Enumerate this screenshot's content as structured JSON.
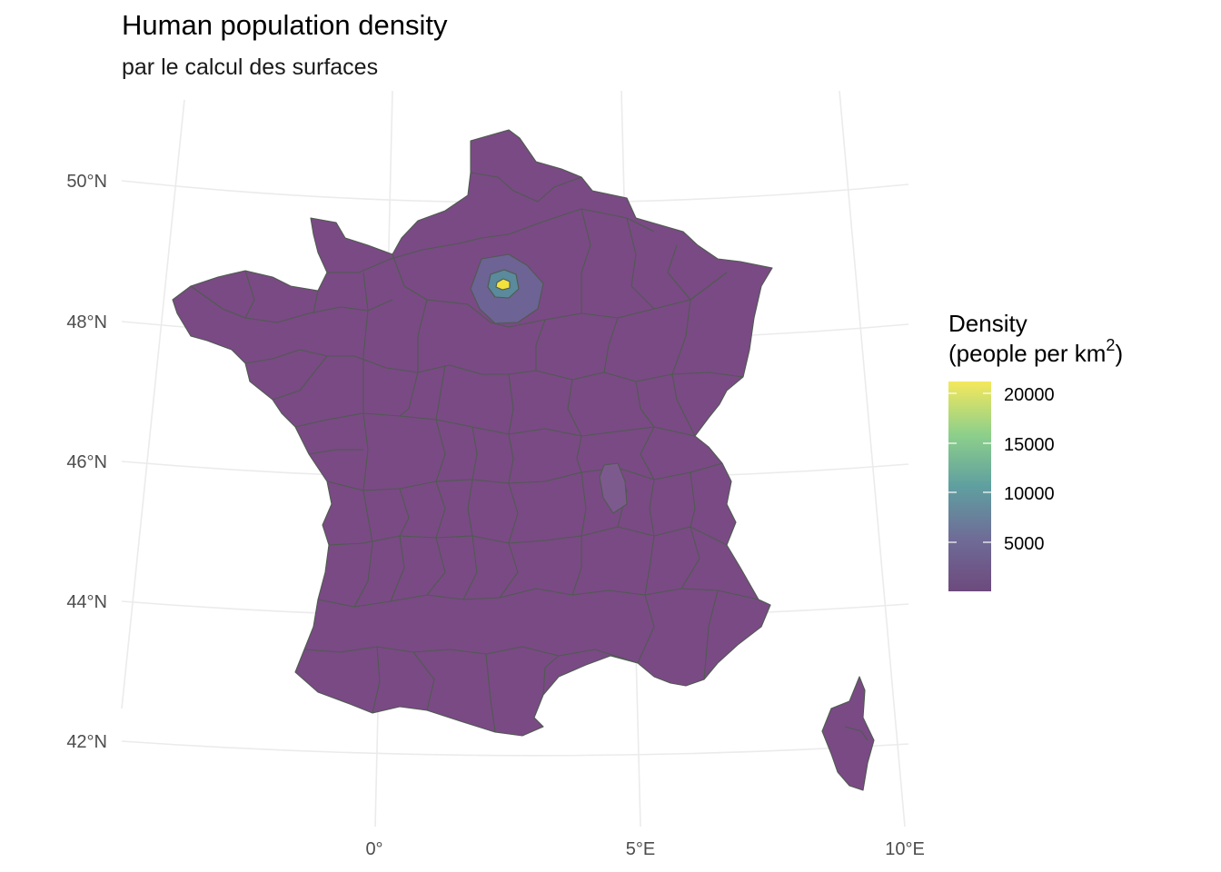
{
  "title": "Human population density",
  "subtitle": "par le calcul des surfaces",
  "axes": {
    "x_labels": [
      "0°",
      "5°E",
      "10°E"
    ],
    "y_labels": [
      "50°N",
      "48°N",
      "46°N",
      "44°N",
      "42°N"
    ]
  },
  "legend": {
    "title_line1": "Density",
    "title_line2": "(people per km",
    "title_sup": "2",
    "title_close": ")",
    "breaks": [
      "20000",
      "15000",
      "10000",
      "5000"
    ],
    "range": [
      0,
      21000
    ],
    "palette": [
      "#440154",
      "#3b528b",
      "#21918c",
      "#5ec962",
      "#fde725"
    ]
  },
  "map": {
    "base_fill": "#7a4a85",
    "lyon_fill": "#7d5a8e",
    "suburb_fill": "#6d6394",
    "inner_fill": "#5a8a9c",
    "paris_fill": "#f1e33c"
  }
}
